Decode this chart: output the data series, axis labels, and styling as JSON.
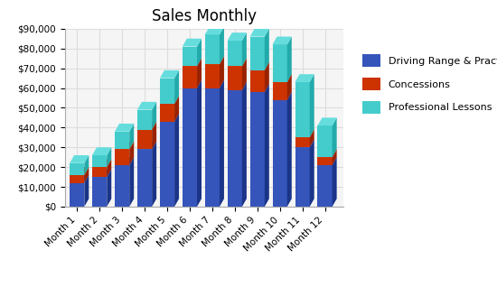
{
  "title": "Sales Monthly",
  "categories": [
    "Month 1",
    "Month 2",
    "Month 3",
    "Month 4",
    "Month 5",
    "Month 6",
    "Month 7",
    "Month 8",
    "Month 9",
    "Month 10",
    "Month 11",
    "Month 12"
  ],
  "driving_range": [
    12000,
    15000,
    21000,
    29000,
    43000,
    60000,
    60000,
    59000,
    58000,
    54000,
    30000,
    21000
  ],
  "concessions": [
    4000,
    5000,
    8000,
    10000,
    9000,
    11000,
    12000,
    12000,
    11000,
    9000,
    5000,
    4000
  ],
  "prof_lessons": [
    6000,
    6000,
    9000,
    10000,
    13000,
    10000,
    15000,
    13000,
    17000,
    19000,
    28000,
    16000
  ],
  "color_driving_front": "#3555BB",
  "color_driving_side": "#1A3488",
  "color_driving_top": "#4466CC",
  "color_conc_front": "#CC3300",
  "color_conc_side": "#992200",
  "color_conc_top": "#DD4411",
  "color_less_front": "#44CCCC",
  "color_less_side": "#22AAAA",
  "color_less_top": "#66DDDD",
  "ylim": [
    0,
    90000
  ],
  "yticks": [
    0,
    10000,
    20000,
    30000,
    40000,
    50000,
    60000,
    70000,
    80000,
    90000
  ],
  "legend_labels": [
    "Driving Range & Practice Faciliti",
    "Concessions",
    "Professional Lessons"
  ],
  "background_color": "#FFFFFF",
  "plot_bg": "#F5F5F5",
  "grid_color": "#DDDDDD"
}
